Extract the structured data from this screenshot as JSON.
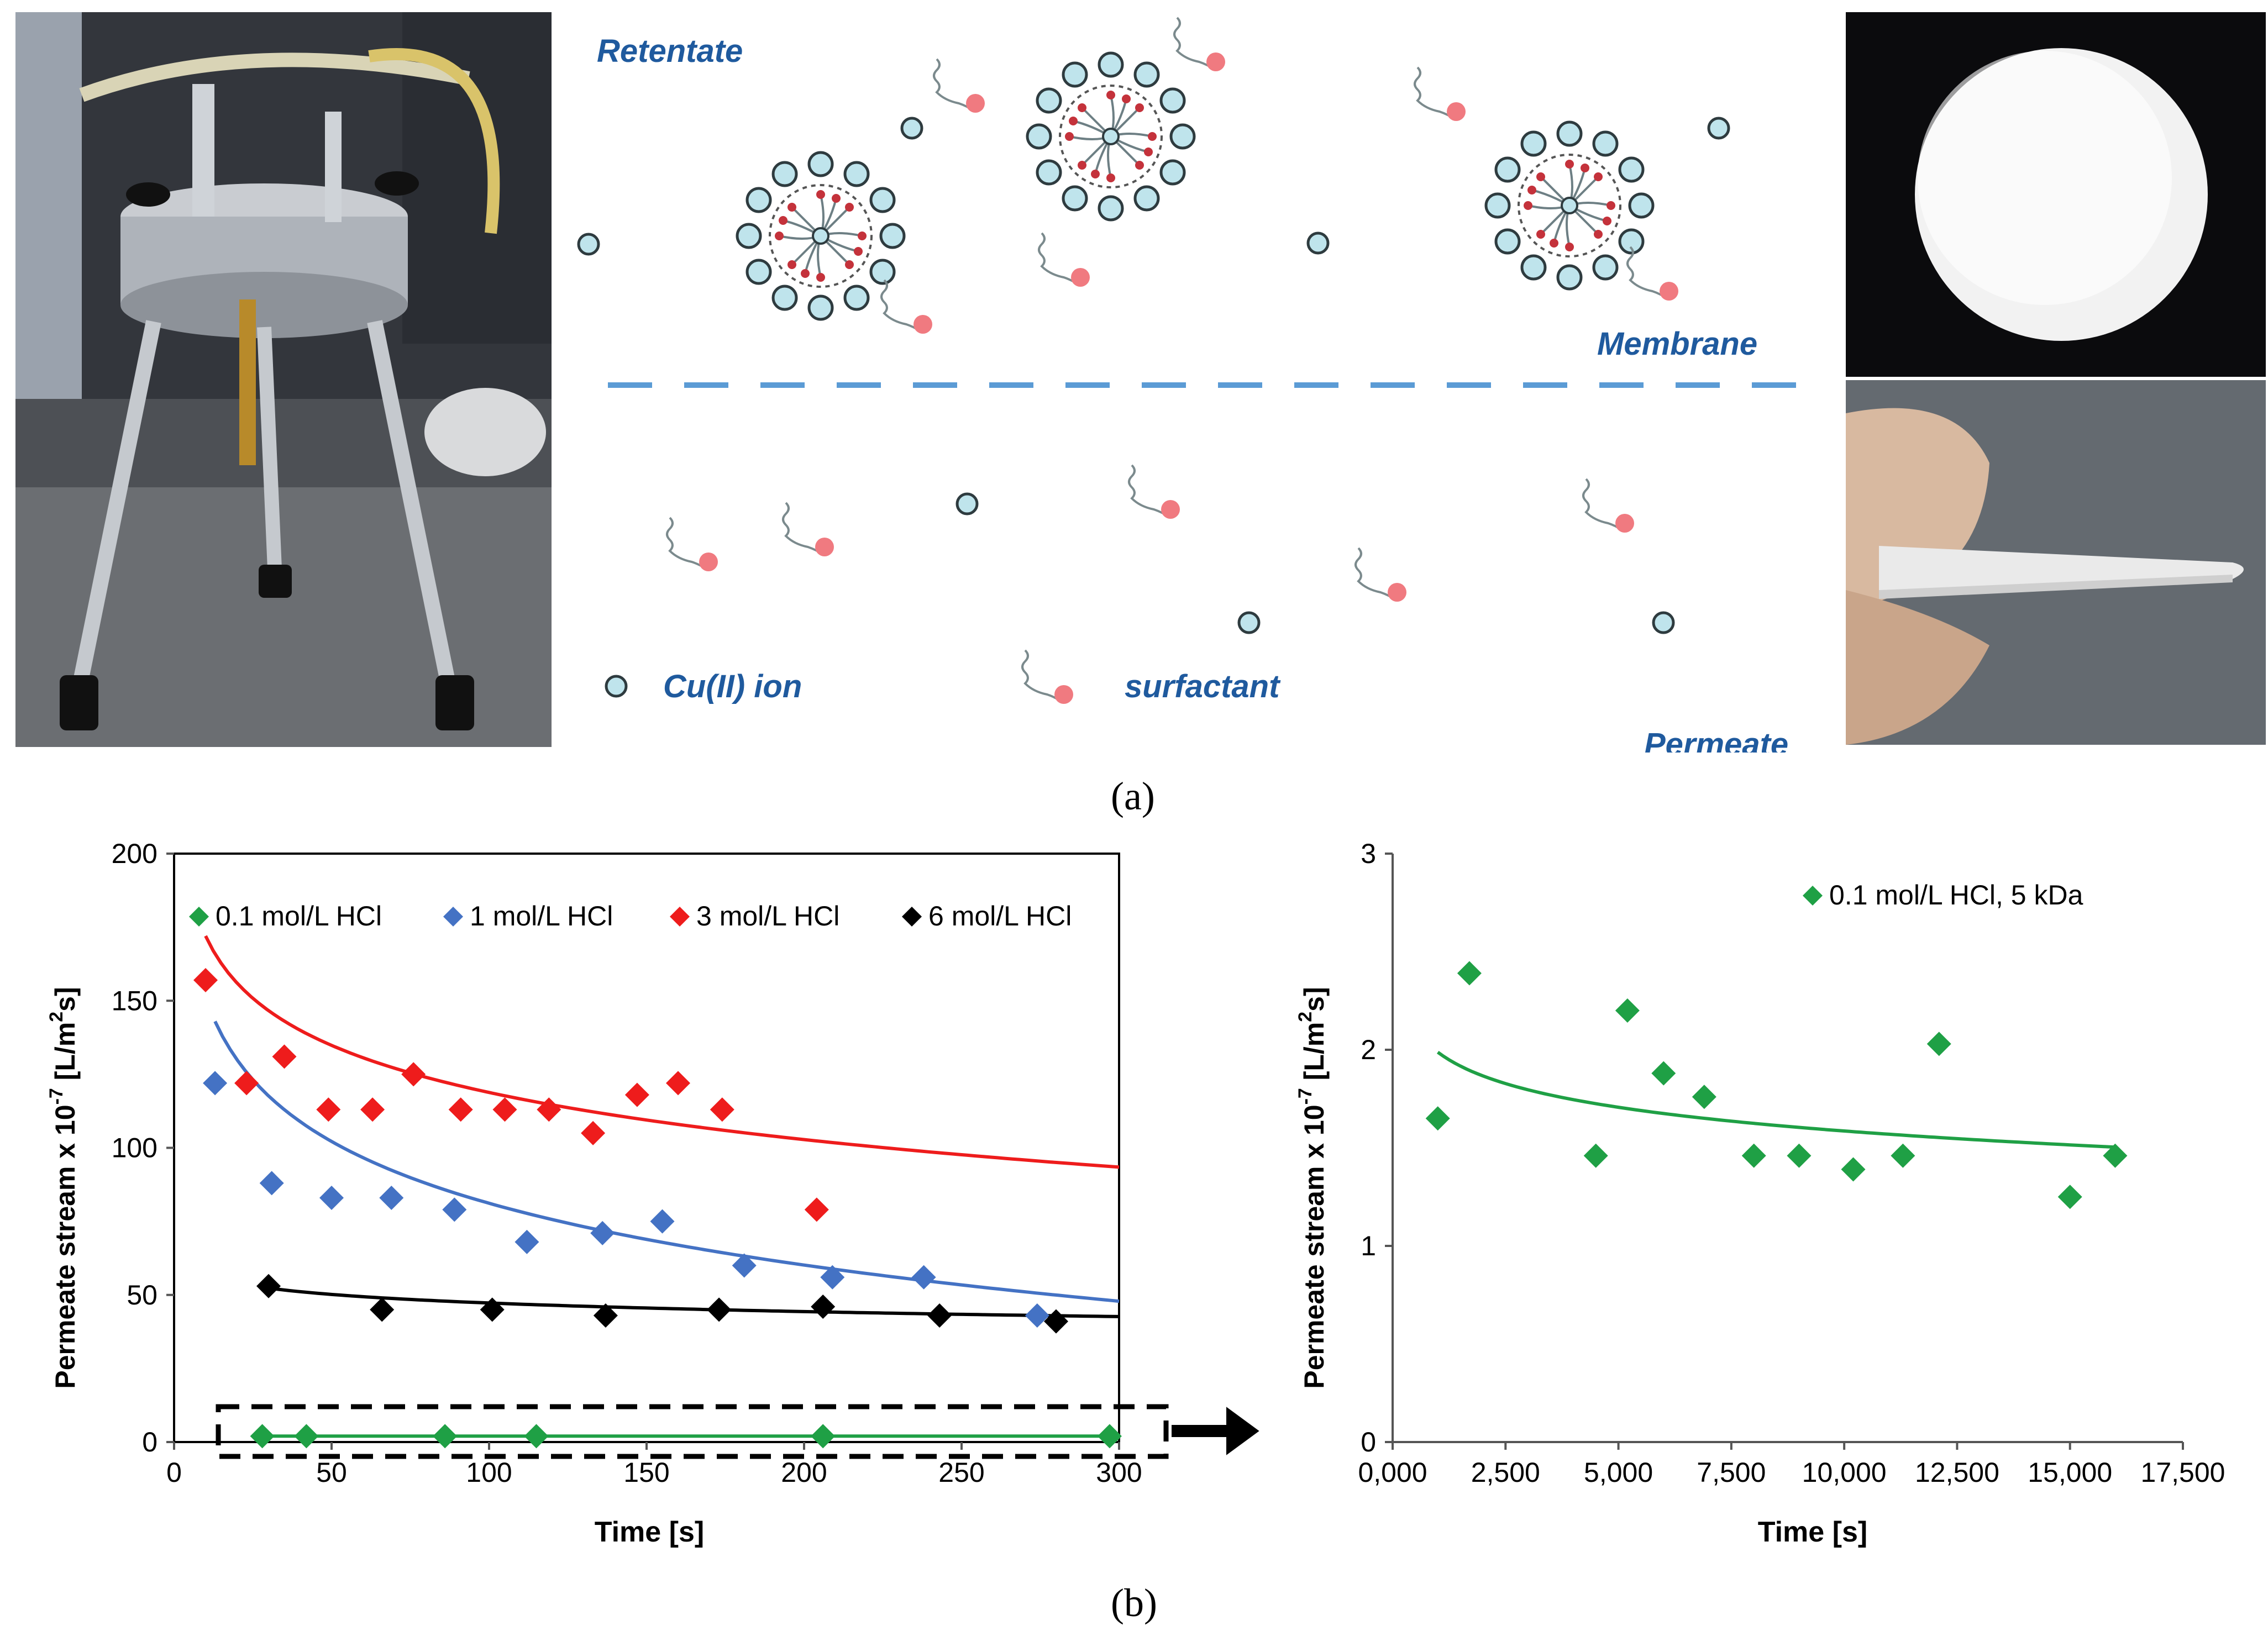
{
  "panel_a": {
    "label_text": "(a)",
    "label_bold": "a",
    "scheme": {
      "retentate": "Retentate",
      "membrane": "Membrane",
      "permeate": "Permeate",
      "legend_ion": "Cu(II) ion",
      "legend_surfactant": "surfactant"
    },
    "colors": {
      "text_blue": "#1f5a9e",
      "ion_fill": "#bfe4ec",
      "surfactant_head": "#f07a80",
      "membrane_line": "#5b9bd5"
    }
  },
  "panel_b": {
    "label_text": "(b)",
    "label_bold": "b"
  },
  "chart_data": [
    {
      "type": "scatter",
      "title": "",
      "xlabel": "Time [s]",
      "ylabel": "Permeate stream x 10^-7 [L/m^2s]",
      "ylabel_main": "Permeate stream x 10",
      "ylabel_exp": "-7",
      "ylabel_unit_a": " [L/m",
      "ylabel_unit_sup": "2",
      "ylabel_unit_b": "s]",
      "xlim": [
        0,
        300
      ],
      "ylim": [
        0,
        200
      ],
      "xticks": [
        0,
        50,
        100,
        150,
        200,
        250,
        300
      ],
      "yticks": [
        0,
        50,
        100,
        150,
        200
      ],
      "xtick_labels": [
        "0",
        "50",
        "100",
        "150",
        "200",
        "250",
        "300"
      ],
      "ytick_labels": [
        "0",
        "50",
        "100",
        "150",
        "200"
      ],
      "legend_position": "top",
      "series": [
        {
          "name": "0.1 mol/L HCl",
          "color": "#1fa045",
          "x": [
            28,
            42,
            86,
            115,
            206,
            297
          ],
          "y": [
            2,
            2,
            2,
            2,
            2,
            2
          ],
          "fit": {
            "a": 2,
            "b": 0
          }
        },
        {
          "name": "1 mol/L HCl",
          "color": "#4472c4",
          "x": [
            13,
            31,
            50,
            69,
            89,
            112,
            136,
            155,
            181,
            209,
            238,
            274
          ],
          "y": [
            122,
            88,
            83,
            83,
            79,
            68,
            71,
            75,
            60,
            56,
            56,
            43
          ],
          "fit": {
            "a": 220.7,
            "b": 30.3
          }
        },
        {
          "name": "3 mol/L HCl",
          "color": "#ee1c1c",
          "x": [
            10,
            23,
            35,
            49,
            63,
            76,
            91,
            105,
            119,
            133,
            147,
            160,
            174,
            204
          ],
          "y": [
            157,
            122,
            131,
            113,
            113,
            125,
            113,
            113,
            113,
            105,
            118,
            122,
            113,
            79
          ],
          "fit": {
            "a": 225.2,
            "b": 23.1
          }
        },
        {
          "name": "6 mol/L HCl",
          "color": "#000000",
          "x": [
            30,
            66,
            101,
            137,
            173,
            206,
            243,
            280
          ],
          "y": [
            53,
            45,
            45,
            43,
            45,
            46,
            43,
            41
          ],
          "fit": {
            "a": 66.6,
            "b": 4.2
          }
        }
      ],
      "annotation": "dashed box around 0.1 mol/L HCl data with arrow pointing to right chart"
    },
    {
      "type": "scatter",
      "title": "",
      "xlabel": "Time [s]",
      "ylabel": "Permeate stream x 10^-7 [L/m^2s]",
      "ylabel_main": "Permeate stream x 10",
      "ylabel_exp": "-7",
      "ylabel_unit_a": " [L/m",
      "ylabel_unit_sup": "2",
      "ylabel_unit_b": "s]",
      "xlim": [
        0,
        17500
      ],
      "ylim": [
        0,
        3
      ],
      "xticks": [
        0,
        2500,
        5000,
        7500,
        10000,
        12500,
        15000,
        17500
      ],
      "yticks": [
        0,
        1,
        2,
        3
      ],
      "xtick_labels": [
        "0,000",
        "2,500",
        "5,000",
        "7,500",
        "10,000",
        "12,500",
        "15,000",
        "17,500"
      ],
      "ytick_labels": [
        "0",
        "1",
        "2",
        "3"
      ],
      "legend_position": "top-right",
      "series": [
        {
          "name": "0.1 mol/L HCl, 5 kDa",
          "color": "#1fa045",
          "x": [
            1000,
            1700,
            4500,
            5200,
            6000,
            6900,
            8000,
            9000,
            10200,
            11300,
            12100,
            15000,
            16000
          ],
          "y": [
            1.65,
            2.39,
            1.46,
            2.2,
            1.88,
            1.76,
            1.46,
            1.46,
            1.39,
            1.46,
            2.03,
            1.25,
            1.46
          ],
          "fit": {
            "a": 3.193,
            "b": 0.1745,
            "xmin": 1000,
            "xmax": 16000
          }
        }
      ]
    }
  ]
}
